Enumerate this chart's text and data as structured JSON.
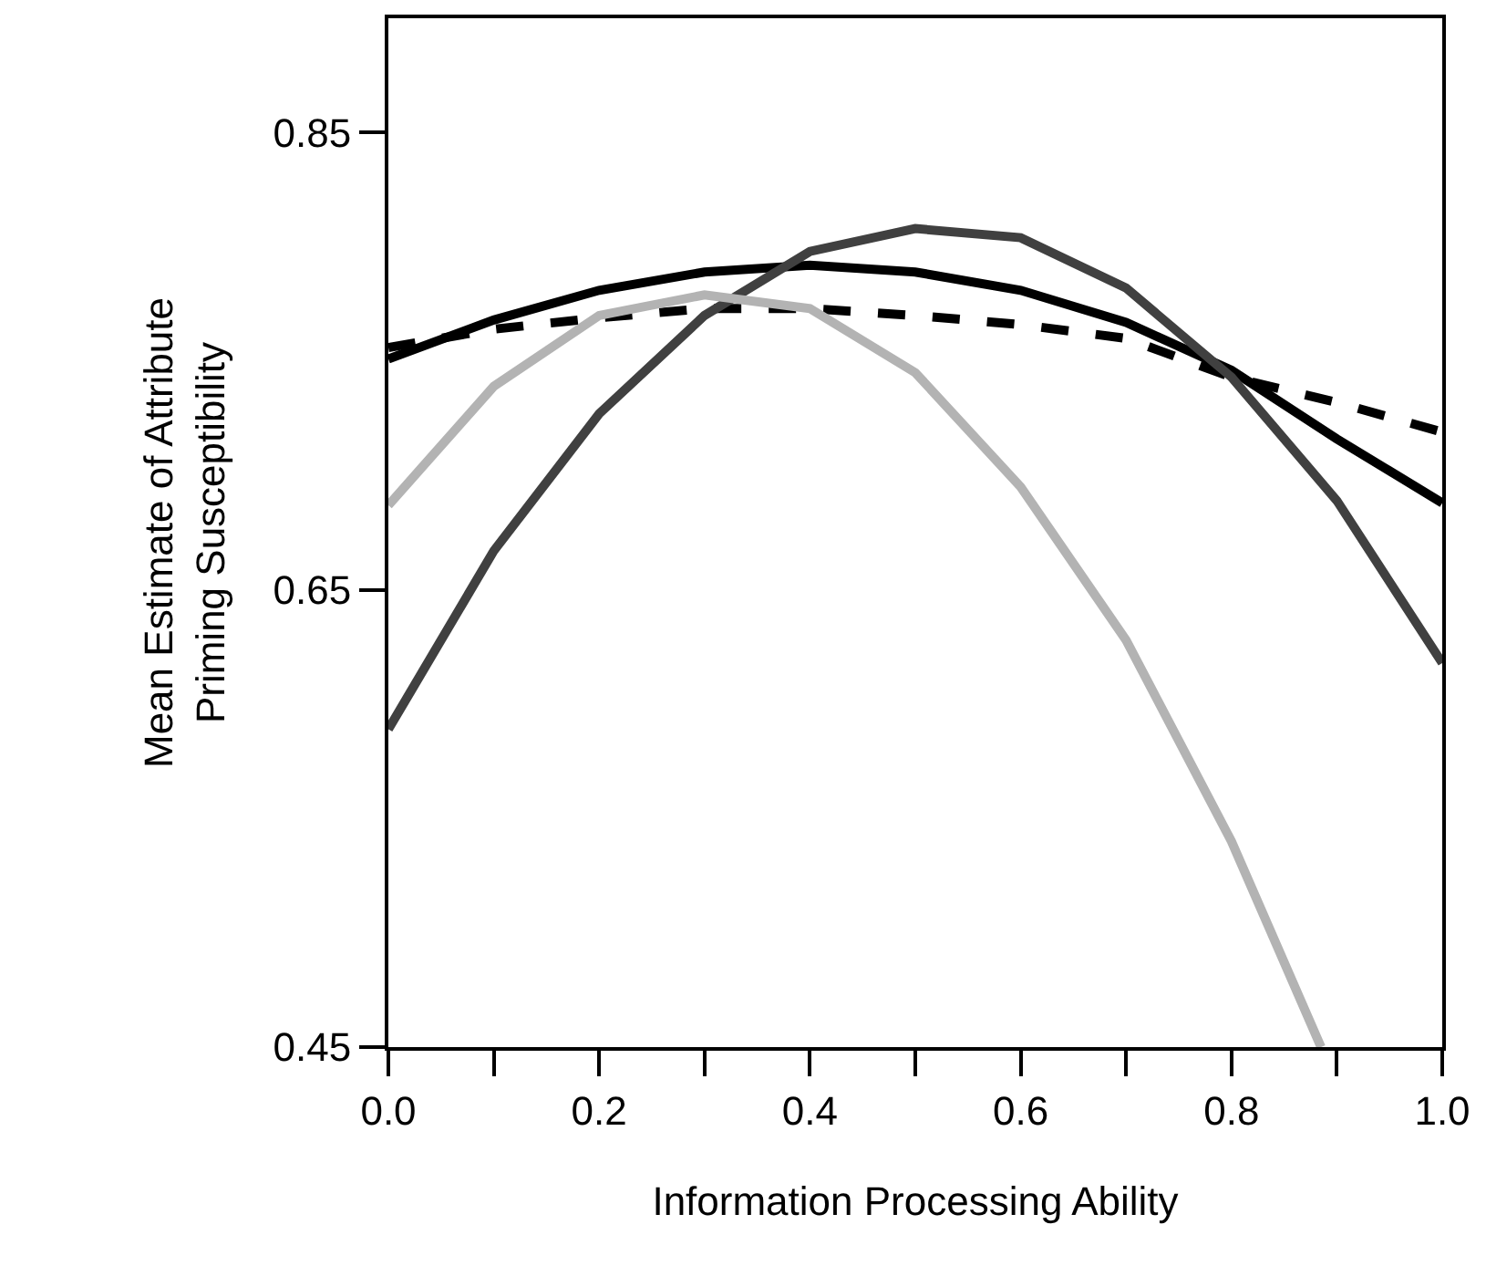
{
  "chart_data": {
    "type": "line",
    "xlabel": "Information Processing Ability",
    "ylabel": "Mean Estimate of Attribute\nPriming Susceptibility",
    "x": [
      0,
      0.1,
      0.2,
      0.3,
      0.4,
      0.5,
      0.6,
      0.7,
      0.8,
      0.9,
      1.0
    ],
    "series": [
      {
        "color": "#000000",
        "line_style": "solid",
        "values": [
          0.751,
          0.768,
          0.781,
          0.789,
          0.792,
          0.789,
          0.781,
          0.767,
          0.746,
          0.716,
          0.688
        ]
      },
      {
        "color": "#000000",
        "line_style": "dashed",
        "values": [
          0.756,
          0.764,
          0.769,
          0.773,
          0.773,
          0.77,
          0.766,
          0.76,
          0.743,
          0.732,
          0.719
        ]
      },
      {
        "color": "#404040",
        "line_style": "solid",
        "values": [
          0.589,
          0.667,
          0.727,
          0.77,
          0.798,
          0.808,
          0.804,
          0.782,
          0.743,
          0.689,
          0.618
        ]
      },
      {
        "color": "#b3b3b3",
        "line_style": "solid",
        "x": [
          0,
          0.1,
          0.2,
          0.3,
          0.4,
          0.5,
          0.6,
          0.7,
          0.8,
          0.885
        ],
        "values": [
          0.687,
          0.739,
          0.77,
          0.779,
          0.773,
          0.745,
          0.695,
          0.628,
          0.54,
          0.45
        ]
      }
    ],
    "xlim": [
      0,
      1.0
    ],
    "xticks": [
      {
        "value": 0,
        "label": "0.0"
      },
      {
        "value": 0.1,
        "label": null
      },
      {
        "value": 0.2,
        "label": "0.2"
      },
      {
        "value": 0.3,
        "label": null
      },
      {
        "value": 0.4,
        "label": "0.4"
      },
      {
        "value": 0.5,
        "label": null
      },
      {
        "value": 0.6,
        "label": "0.6"
      },
      {
        "value": 0.7,
        "label": null
      },
      {
        "value": 0.8,
        "label": "0.8"
      },
      {
        "value": 0.9,
        "label": null
      },
      {
        "value": 1.0,
        "label": "1.0"
      }
    ],
    "ylim": [
      0.45,
      0.9
    ],
    "yticks": [
      0.45,
      0.65,
      0.85
    ],
    "grid": false,
    "marker": "none"
  }
}
